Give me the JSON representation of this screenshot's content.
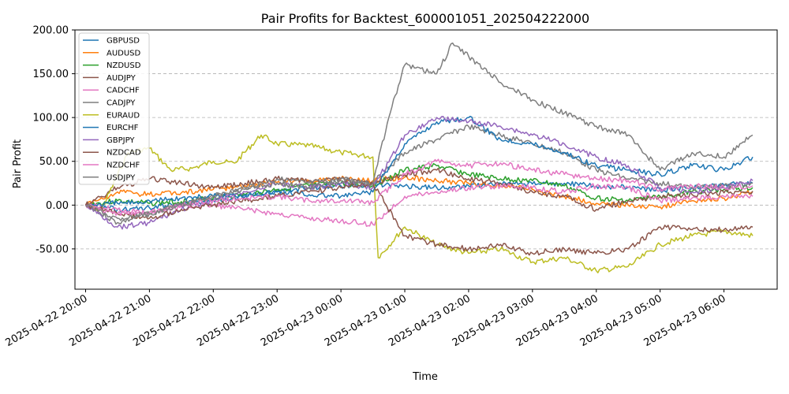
{
  "chart_data": {
    "type": "line",
    "title": "Pair Profits for Backtest_600001051_202504222000",
    "xlabel": "Time",
    "ylabel": "Pair Profit",
    "x_range": [
      "2025-04-22 19:50",
      "2025-04-23 06:50"
    ],
    "ylim": [
      -96,
      200
    ],
    "y_ticks": [
      "-50.00",
      "0.00",
      "50.00",
      "100.00",
      "150.00",
      "200.00"
    ],
    "y_tick_values": [
      -50,
      0,
      50,
      100,
      150,
      200
    ],
    "x_ticks": [
      "2025-04-22 20:00",
      "2025-04-22 21:00",
      "2025-04-22 22:00",
      "2025-04-22 23:00",
      "2025-04-23 00:00",
      "2025-04-23 01:00",
      "2025-04-23 02:00",
      "2025-04-23 03:00",
      "2025-04-23 04:00",
      "2025-04-23 05:00",
      "2025-04-23 06:00"
    ],
    "grid": "horizontal dashed",
    "legend_position": "upper left",
    "series": [
      {
        "name": "GBPUSD",
        "color": "#1f77b4",
        "x": [
          "2025-04-22 20:00",
          "2025-04-22 20:30",
          "2025-04-22 21:00",
          "2025-04-22 21:30",
          "2025-04-22 22:00",
          "2025-04-22 22:30",
          "2025-04-22 23:00",
          "2025-04-22 23:30",
          "2025-04-23 00:00",
          "2025-04-23 00:30",
          "2025-04-23 01:00",
          "2025-04-23 01:30",
          "2025-04-23 02:00",
          "2025-04-23 02:30",
          "2025-04-23 03:00",
          "2025-04-23 03:30",
          "2025-04-23 04:00",
          "2025-04-23 04:30",
          "2025-04-23 05:00",
          "2025-04-23 05:30",
          "2025-04-23 06:00",
          "2025-04-23 06:27"
        ],
        "y": [
          0,
          -5,
          -3,
          2,
          6,
          10,
          15,
          20,
          22,
          24,
          22,
          20,
          22,
          25,
          24,
          25,
          22,
          20,
          17,
          20,
          23,
          25
        ]
      },
      {
        "name": "AUDUSD",
        "color": "#ff7f0e",
        "x": [
          "2025-04-22 20:00",
          "2025-04-22 20:30",
          "2025-04-22 21:00",
          "2025-04-22 21:30",
          "2025-04-22 22:00",
          "2025-04-22 22:30",
          "2025-04-22 23:00",
          "2025-04-22 23:30",
          "2025-04-23 00:00",
          "2025-04-23 00:30",
          "2025-04-23 01:00",
          "2025-04-23 01:30",
          "2025-04-23 02:00",
          "2025-04-23 02:30",
          "2025-04-23 03:00",
          "2025-04-23 03:30",
          "2025-04-23 04:00",
          "2025-04-23 04:30",
          "2025-04-23 05:00",
          "2025-04-23 05:30",
          "2025-04-23 06:00",
          "2025-04-23 06:27"
        ],
        "y": [
          0,
          15,
          12,
          14,
          18,
          22,
          26,
          28,
          30,
          28,
          32,
          28,
          25,
          22,
          18,
          10,
          2,
          0,
          -2,
          5,
          8,
          15
        ]
      },
      {
        "name": "NZDUSD",
        "color": "#2ca02c",
        "x": [
          "2025-04-22 20:00",
          "2025-04-22 20:30",
          "2025-04-22 21:00",
          "2025-04-22 21:30",
          "2025-04-22 22:00",
          "2025-04-22 22:30",
          "2025-04-22 23:00",
          "2025-04-22 23:30",
          "2025-04-23 00:00",
          "2025-04-23 00:30",
          "2025-04-23 01:00",
          "2025-04-23 01:30",
          "2025-04-23 02:00",
          "2025-04-23 02:30",
          "2025-04-23 03:00",
          "2025-04-23 03:30",
          "2025-04-23 04:00",
          "2025-04-23 04:30",
          "2025-04-23 05:00",
          "2025-04-23 05:30",
          "2025-04-23 06:00",
          "2025-04-23 06:27"
        ],
        "y": [
          0,
          5,
          2,
          4,
          8,
          12,
          18,
          22,
          25,
          22,
          40,
          45,
          35,
          30,
          28,
          22,
          8,
          5,
          10,
          15,
          18,
          20
        ]
      },
      {
        "name": "AUDJPY",
        "color": "#8c564b",
        "x": [
          "2025-04-22 20:00",
          "2025-04-22 20:30",
          "2025-04-22 21:00",
          "2025-04-22 21:30",
          "2025-04-22 22:00",
          "2025-04-22 22:30",
          "2025-04-22 23:00",
          "2025-04-22 23:30",
          "2025-04-23 00:00",
          "2025-04-23 00:30",
          "2025-04-23 01:00",
          "2025-04-23 01:30",
          "2025-04-23 02:00",
          "2025-04-23 02:30",
          "2025-04-23 03:00",
          "2025-04-23 03:30",
          "2025-04-23 04:00",
          "2025-04-23 04:30",
          "2025-04-23 05:00",
          "2025-04-23 05:30",
          "2025-04-23 06:00",
          "2025-04-23 06:27"
        ],
        "y": [
          0,
          20,
          30,
          25,
          20,
          25,
          30,
          28,
          30,
          25,
          35,
          40,
          30,
          25,
          15,
          10,
          -5,
          5,
          10,
          12,
          14,
          16
        ]
      },
      {
        "name": "CADCHF",
        "color": "#e377c2",
        "x": [
          "2025-04-22 20:00",
          "2025-04-22 20:30",
          "2025-04-22 21:00",
          "2025-04-22 21:30",
          "2025-04-22 22:00",
          "2025-04-22 22:30",
          "2025-04-22 23:00",
          "2025-04-22 23:30",
          "2025-04-23 00:00",
          "2025-04-23 00:30",
          "2025-04-23 01:00",
          "2025-04-23 01:30",
          "2025-04-23 02:00",
          "2025-04-23 02:30",
          "2025-04-23 03:00",
          "2025-04-23 03:30",
          "2025-04-23 04:00",
          "2025-04-23 04:30",
          "2025-04-23 05:00",
          "2025-04-23 05:30",
          "2025-04-23 06:00",
          "2025-04-23 06:27"
        ],
        "y": [
          0,
          -5,
          -8,
          -2,
          0,
          -5,
          -10,
          -15,
          -18,
          -22,
          10,
          15,
          20,
          22,
          20,
          15,
          22,
          20,
          5,
          8,
          10,
          10
        ]
      },
      {
        "name": "CADJPY",
        "color": "#7f7f7f",
        "x": [
          "2025-04-22 20:00",
          "2025-04-22 20:30",
          "2025-04-22 21:00",
          "2025-04-22 21:30",
          "2025-04-22 22:00",
          "2025-04-22 22:30",
          "2025-04-22 23:00",
          "2025-04-22 23:30",
          "2025-04-23 00:00",
          "2025-04-23 00:30",
          "2025-04-23 01:00",
          "2025-04-23 01:30",
          "2025-04-23 02:00",
          "2025-04-23 02:30",
          "2025-04-23 03:00",
          "2025-04-23 03:30",
          "2025-04-23 04:00",
          "2025-04-23 04:30",
          "2025-04-23 05:00",
          "2025-04-23 05:30",
          "2025-04-23 06:00",
          "2025-04-23 06:27"
        ],
        "y": [
          0,
          -20,
          -10,
          0,
          10,
          20,
          30,
          25,
          30,
          25,
          60,
          75,
          90,
          80,
          70,
          60,
          40,
          30,
          25,
          20,
          22,
          25
        ]
      },
      {
        "name": "EURAUD",
        "color": "#bcbd22",
        "x": [
          "2025-04-22 20:00",
          "2025-04-22 20:15",
          "2025-04-22 20:40",
          "2025-04-22 21:00",
          "2025-04-22 21:20",
          "2025-04-22 21:40",
          "2025-04-22 22:00",
          "2025-04-22 22:20",
          "2025-04-22 22:45",
          "2025-04-22 23:00",
          "2025-04-22 23:30",
          "2025-04-23 00:00",
          "2025-04-23 00:30",
          "2025-04-23 00:35",
          "2025-04-23 01:00",
          "2025-04-23 01:30",
          "2025-04-23 02:00",
          "2025-04-23 02:30",
          "2025-04-23 03:00",
          "2025-04-23 03:30",
          "2025-04-23 04:00",
          "2025-04-23 04:30",
          "2025-04-23 05:00",
          "2025-04-23 05:30",
          "2025-04-23 06:00",
          "2025-04-23 06:27"
        ],
        "y": [
          0,
          -5,
          60,
          65,
          40,
          42,
          50,
          48,
          80,
          70,
          68,
          60,
          55,
          -60,
          -25,
          -45,
          -55,
          -50,
          -65,
          -60,
          -75,
          -70,
          -45,
          -35,
          -30,
          -35
        ]
      },
      {
        "name": "EURCHF",
        "color": "#1f77b4",
        "x": [
          "2025-04-22 20:00",
          "2025-04-22 20:30",
          "2025-04-22 21:00",
          "2025-04-22 21:30",
          "2025-04-22 22:00",
          "2025-04-22 22:30",
          "2025-04-22 23:00",
          "2025-04-22 23:30",
          "2025-04-23 00:00",
          "2025-04-23 00:30",
          "2025-04-23 01:00",
          "2025-04-23 01:30",
          "2025-04-23 02:00",
          "2025-04-23 02:30",
          "2025-04-23 03:00",
          "2025-04-23 03:30",
          "2025-04-23 04:00",
          "2025-04-23 04:30",
          "2025-04-23 05:00",
          "2025-04-23 05:30",
          "2025-04-23 06:00",
          "2025-04-23 06:27"
        ],
        "y": [
          0,
          2,
          5,
          8,
          10,
          12,
          15,
          12,
          10,
          15,
          70,
          95,
          100,
          75,
          70,
          60,
          45,
          40,
          35,
          45,
          40,
          55
        ]
      },
      {
        "name": "GBPJPY",
        "color": "#9467bd",
        "x": [
          "2025-04-22 20:00",
          "2025-04-22 20:30",
          "2025-04-22 21:00",
          "2025-04-22 21:30",
          "2025-04-22 22:00",
          "2025-04-22 22:30",
          "2025-04-22 23:00",
          "2025-04-22 23:30",
          "2025-04-23 00:00",
          "2025-04-23 00:30",
          "2025-04-23 01:00",
          "2025-04-23 01:30",
          "2025-04-23 02:00",
          "2025-04-23 02:30",
          "2025-04-23 03:00",
          "2025-04-23 03:30",
          "2025-04-23 04:00",
          "2025-04-23 04:30",
          "2025-04-23 05:00",
          "2025-04-23 05:30",
          "2025-04-23 06:00",
          "2025-04-23 06:27"
        ],
        "y": [
          0,
          -25,
          -20,
          -5,
          5,
          15,
          25,
          20,
          25,
          20,
          80,
          100,
          95,
          90,
          80,
          70,
          55,
          45,
          20,
          15,
          20,
          28
        ]
      },
      {
        "name": "NZDCAD",
        "color": "#8c564b",
        "x": [
          "2025-04-22 20:00",
          "2025-04-22 20:30",
          "2025-04-22 21:00",
          "2025-04-22 21:30",
          "2025-04-22 22:00",
          "2025-04-22 22:30",
          "2025-04-22 23:00",
          "2025-04-22 23:30",
          "2025-04-23 00:00",
          "2025-04-23 00:30",
          "2025-04-23 01:00",
          "2025-04-23 01:30",
          "2025-04-23 02:00",
          "2025-04-23 02:30",
          "2025-04-23 03:00",
          "2025-04-23 03:30",
          "2025-04-23 04:00",
          "2025-04-23 04:30",
          "2025-04-23 05:00",
          "2025-04-23 05:30",
          "2025-04-23 06:00",
          "2025-04-23 06:27"
        ],
        "y": [
          0,
          -10,
          -15,
          -5,
          0,
          5,
          10,
          15,
          20,
          25,
          -35,
          -45,
          -50,
          -45,
          -55,
          -50,
          -55,
          -50,
          -25,
          -28,
          -28,
          -25
        ]
      },
      {
        "name": "NZDCHF",
        "color": "#e377c2",
        "x": [
          "2025-04-22 20:00",
          "2025-04-22 20:30",
          "2025-04-22 21:00",
          "2025-04-22 21:30",
          "2025-04-22 22:00",
          "2025-04-22 22:30",
          "2025-04-22 23:00",
          "2025-04-22 23:30",
          "2025-04-23 00:00",
          "2025-04-23 00:30",
          "2025-04-23 01:00",
          "2025-04-23 01:30",
          "2025-04-23 02:00",
          "2025-04-23 02:30",
          "2025-04-23 03:00",
          "2025-04-23 03:30",
          "2025-04-23 04:00",
          "2025-04-23 04:30",
          "2025-04-23 05:00",
          "2025-04-23 05:30",
          "2025-04-23 06:00",
          "2025-04-23 06:27"
        ],
        "y": [
          0,
          -10,
          -8,
          0,
          5,
          8,
          10,
          5,
          5,
          3,
          35,
          50,
          45,
          48,
          40,
          35,
          30,
          28,
          18,
          22,
          20,
          22
        ]
      },
      {
        "name": "USDJPY",
        "color": "#7f7f7f",
        "x": [
          "2025-04-22 20:00",
          "2025-04-22 20:30",
          "2025-04-22 21:00",
          "2025-04-22 21:30",
          "2025-04-22 22:00",
          "2025-04-22 22:30",
          "2025-04-22 23:00",
          "2025-04-22 23:30",
          "2025-04-23 00:00",
          "2025-04-23 00:30",
          "2025-04-23 00:45",
          "2025-04-23 01:00",
          "2025-04-23 01:30",
          "2025-04-23 01:45",
          "2025-04-23 02:00",
          "2025-04-23 02:30",
          "2025-04-23 03:00",
          "2025-04-23 03:30",
          "2025-04-23 04:00",
          "2025-04-23 04:30",
          "2025-04-23 05:00",
          "2025-04-23 05:30",
          "2025-04-23 06:00",
          "2025-04-23 06:27"
        ],
        "y": [
          0,
          -15,
          -10,
          0,
          10,
          18,
          25,
          20,
          28,
          25,
          100,
          160,
          150,
          185,
          170,
          140,
          120,
          105,
          90,
          80,
          40,
          60,
          55,
          80
        ]
      }
    ]
  }
}
